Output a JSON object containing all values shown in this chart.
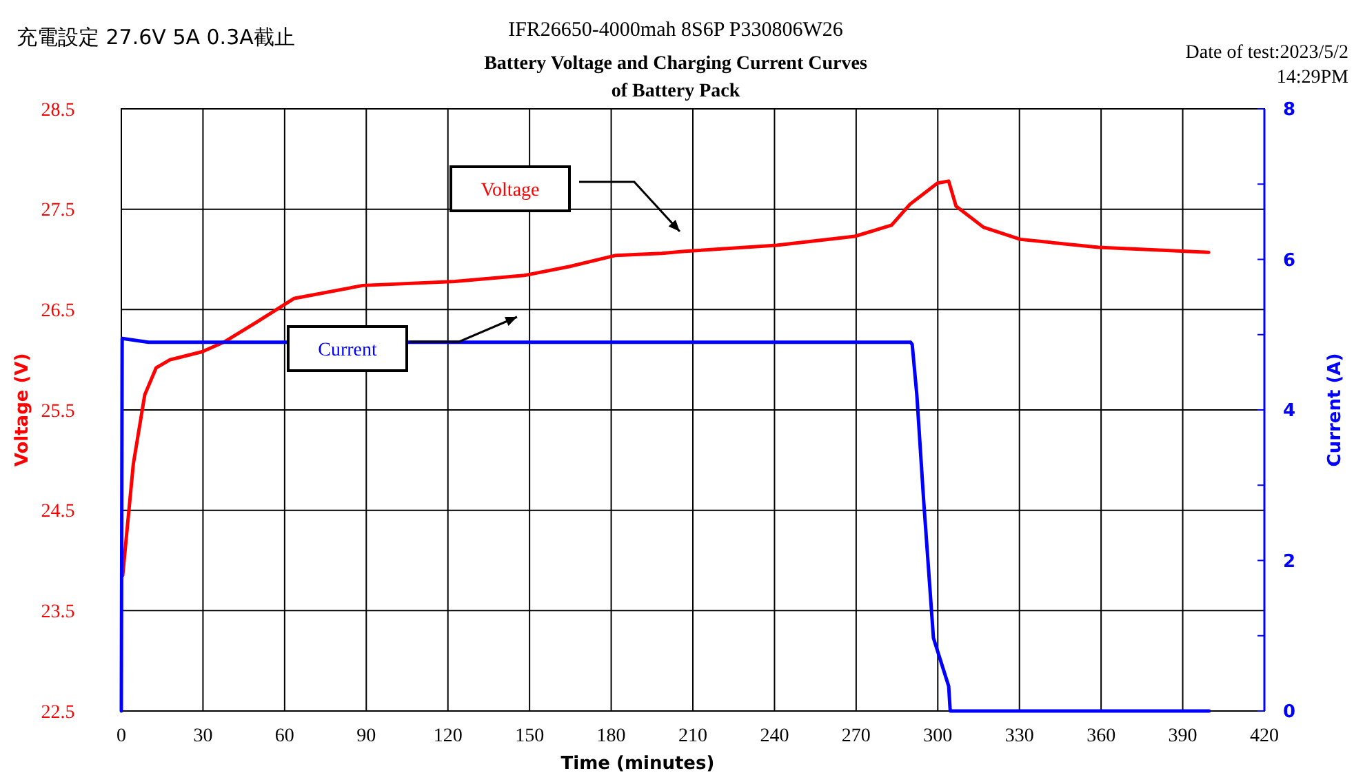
{
  "chart_data": {
    "type": "line",
    "title": "IFR26650-4000mah 8S6P  P330806W26",
    "subtitle": "Battery Voltage and Charging Current Curves of  Battery Pack",
    "xlabel": "Time (minutes)",
    "ylabel": "Voltage (V)",
    "y2label": "Current (A)",
    "xlim": [
      0,
      420
    ],
    "xticks": [
      0,
      30,
      60,
      90,
      120,
      150,
      180,
      210,
      240,
      270,
      300,
      330,
      360,
      390,
      420
    ],
    "ylim": [
      22.5,
      28.5
    ],
    "yticks": [
      22.5,
      23.5,
      24.5,
      25.5,
      26.5,
      27.5,
      28.5
    ],
    "y2lim": [
      0,
      8
    ],
    "y2ticks": [
      0,
      {
        "value": 1,
        "label": null
      },
      2,
      {
        "value": 3,
        "label": null
      },
      4,
      {
        "value": 5,
        "label": null
      },
      6,
      {
        "value": 7,
        "label": null
      },
      8
    ],
    "grid": true,
    "marker": "none",
    "line_style": "solid",
    "series": [
      {
        "color": "#ff0000",
        "x": [
          0.5,
          4.4,
          8.6,
          12.8,
          17.9,
          29.7,
          38,
          50,
          63.4,
          88.7,
          122.6,
          148,
          164.8,
          181.7,
          198.6,
          207,
          240.8,
          269.5,
          283,
          289.8,
          299.9,
          304,
          306.7,
          316.8,
          330.3,
          359,
          399.5
        ],
        "values": [
          23.85,
          24.96,
          25.65,
          25.92,
          26.0,
          26.08,
          26.18,
          26.38,
          26.61,
          26.74,
          26.78,
          26.84,
          26.93,
          27.04,
          27.06,
          27.08,
          27.14,
          27.23,
          27.34,
          27.55,
          27.76,
          27.78,
          27.53,
          27.32,
          27.2,
          27.12,
          27.07
        ]
      },
      {
        "color": "#0000ff",
        "axis": "y2",
        "x": [
          0,
          0.3,
          10,
          290,
          290.6,
          292.3,
          294.8,
          298.4,
          304,
          304.5,
          304.6,
          399.7
        ],
        "values": [
          0,
          4.95,
          4.9,
          4.9,
          4.87,
          4.2,
          2.8,
          0.97,
          0.33,
          0.04,
          0,
          0
        ]
      }
    ],
    "annotations": [
      "充電設定 27.6V 5A 0.3A截止",
      "Date of test:2023/5/2 14:29PM",
      "Voltage",
      "Current"
    ]
  }
}
